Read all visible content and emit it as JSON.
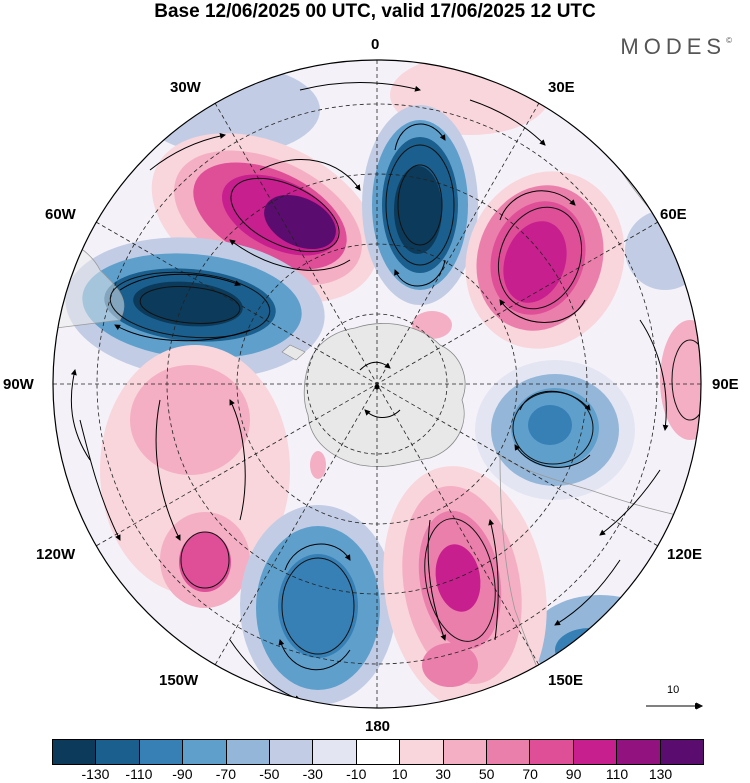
{
  "title": "Base 12/06/2025 00 UTC, valid 17/06/2025 12 UTC",
  "brand": "MODES",
  "brand_mark": "©",
  "longitude_labels": {
    "lon_0": "0",
    "lon_30e": "30E",
    "lon_60e": "60E",
    "lon_90e": "90E",
    "lon_120e": "120E",
    "lon_150e": "150E",
    "lon_180": "180",
    "lon_150w": "150W",
    "lon_120w": "120W",
    "lon_90w": "90W",
    "lon_60w": "60W",
    "lon_30w": "30W"
  },
  "reference_vector": "10",
  "colorbar": {
    "colors": [
      "#0c3a5a",
      "#1b5f8e",
      "#3680b6",
      "#5f9fcc",
      "#94b7d9",
      "#c2cde5",
      "#e4e5f2",
      "#ffffff",
      "#f8d6dc",
      "#f4afc4",
      "#eb7fac",
      "#df4f98",
      "#c71f8e",
      "#92137f",
      "#5a0d6e"
    ],
    "tick_labels": [
      "-130",
      "-110",
      "-90",
      "-70",
      "-50",
      "-30",
      "-10",
      "10",
      "30",
      "50",
      "70",
      "90",
      "110",
      "130"
    ]
  },
  "anomaly_colors": {
    "neg_strong": "#0c3a5a",
    "neg_mid": "#3680b6",
    "neg_weak": "#94b7d9",
    "neg_faint": "#e4e5f2",
    "pos_faint": "#f8d6dc",
    "pos_weak": "#f4afc4",
    "pos_mid": "#df4f98",
    "pos_strong": "#92137f",
    "pos_max": "#5a0d6e",
    "land": "#e8e8e8"
  }
}
